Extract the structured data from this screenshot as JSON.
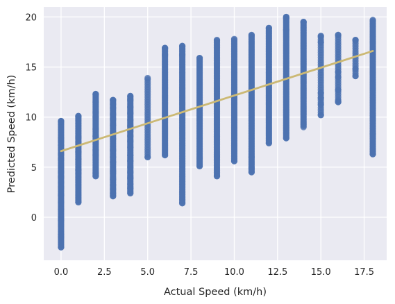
{
  "chart_data": {
    "type": "scatter",
    "xlabel": "Actual Speed (km/h)",
    "ylabel": "Predicted Speed (km/h)",
    "xlim": [
      -1,
      18.8
    ],
    "ylim": [
      -4.3,
      21
    ],
    "x_ticks": [
      0,
      2.5,
      5,
      7.5,
      10,
      12.5,
      15,
      17.5
    ],
    "x_tick_labels": [
      "0.0",
      "2.5",
      "5.0",
      "7.5",
      "10.0",
      "12.5",
      "15.0",
      "17.5"
    ],
    "y_ticks": [
      0,
      5,
      10,
      15,
      20
    ],
    "y_tick_labels": [
      "0",
      "5",
      "10",
      "15",
      "20"
    ],
    "grid": true,
    "background": "#eaeaf2",
    "point_color": "#4c72b0",
    "line_color": "#ccb974",
    "regression_line": {
      "x": [
        0,
        18
      ],
      "y": [
        6.6,
        16.6
      ]
    },
    "columns": [
      {
        "x": 0,
        "y_min": -3.0,
        "y_max": 9.6,
        "extra": [
          -3.0,
          -2.0,
          -1.7,
          -0.3,
          0.0,
          0.8,
          1.5,
          2.2,
          3.0,
          3.5,
          4.0,
          4.5,
          5.0,
          5.8,
          6.3,
          6.8,
          7.2,
          7.6,
          7.9,
          9.6
        ]
      },
      {
        "x": 1,
        "y_min": 1.5,
        "y_max": 10.1,
        "extra": [
          1.5,
          4.4,
          4.7,
          5.8,
          6.5,
          7.5,
          8.0,
          10.1
        ]
      },
      {
        "x": 2,
        "y_min": 4.1,
        "y_max": 12.3,
        "extra": [
          4.1,
          4.4,
          6.2,
          6.7,
          8.1,
          8.8,
          10.0,
          10.5,
          11.5,
          12.3
        ]
      },
      {
        "x": 3,
        "y_min": 2.1,
        "y_max": 11.7,
        "extra": [
          2.1,
          2.4,
          2.8,
          3.2,
          3.8,
          4.4,
          4.6,
          5.5,
          6.0,
          6.7,
          7.8,
          8.5,
          9.2,
          9.8,
          10.3,
          10.9,
          11.3,
          11.7
        ]
      },
      {
        "x": 4,
        "y_min": 2.4,
        "y_max": 12.1,
        "extra": [
          2.4,
          2.9,
          3.3,
          3.9,
          4.5,
          5.0,
          5.6,
          6.2,
          7.0,
          7.6,
          8.1,
          8.6,
          9.1,
          9.7,
          10.4,
          11.0,
          11.7,
          12.1
        ]
      },
      {
        "x": 5,
        "y_min": 6.0,
        "y_max": 13.9,
        "extra": [
          6.0
        ]
      },
      {
        "x": 6,
        "y_min": 6.2,
        "y_max": 16.9,
        "extra": [
          6.2,
          16.2,
          16.9
        ]
      },
      {
        "x": 7,
        "y_min": 1.4,
        "y_max": 17.1,
        "extra": [
          1.4,
          16.2,
          17.1
        ]
      },
      {
        "x": 8,
        "y_min": 5.1,
        "y_max": 15.9,
        "extra": [
          5.1,
          5.9
        ]
      },
      {
        "x": 9,
        "y_min": 4.1,
        "y_max": 17.7,
        "extra": [
          4.1,
          6.1
        ]
      },
      {
        "x": 10,
        "y_min": 5.6,
        "y_max": 17.8,
        "extra": [
          5.6
        ]
      },
      {
        "x": 11,
        "y_min": 4.5,
        "y_max": 18.2,
        "extra": [
          4.5,
          4.9,
          6.0
        ]
      },
      {
        "x": 12,
        "y_min": 7.4,
        "y_max": 18.9,
        "extra": [
          7.4,
          18.9
        ]
      },
      {
        "x": 13,
        "y_min": 7.9,
        "y_max": 20.0,
        "extra": [
          7.9,
          18.7,
          19.9,
          20.0
        ]
      },
      {
        "x": 14,
        "y_min": 9.0,
        "y_max": 19.5,
        "extra": [
          19.5
        ]
      },
      {
        "x": 15,
        "y_min": 10.2,
        "y_max": 18.1,
        "extra": [
          10.2,
          11.3,
          11.9,
          12.4,
          17.5,
          18.1
        ]
      },
      {
        "x": 16,
        "y_min": 11.5,
        "y_max": 18.2,
        "extra": [
          11.5,
          11.6,
          12.7,
          14.0,
          14.5,
          18.2
        ]
      },
      {
        "x": 17,
        "y_min": 14.1,
        "y_max": 17.7,
        "extra": [
          14.1,
          14.8,
          17.7
        ]
      },
      {
        "x": 18,
        "y_min": 6.3,
        "y_max": 19.7,
        "extra": [
          6.3,
          8.3
        ]
      }
    ]
  }
}
